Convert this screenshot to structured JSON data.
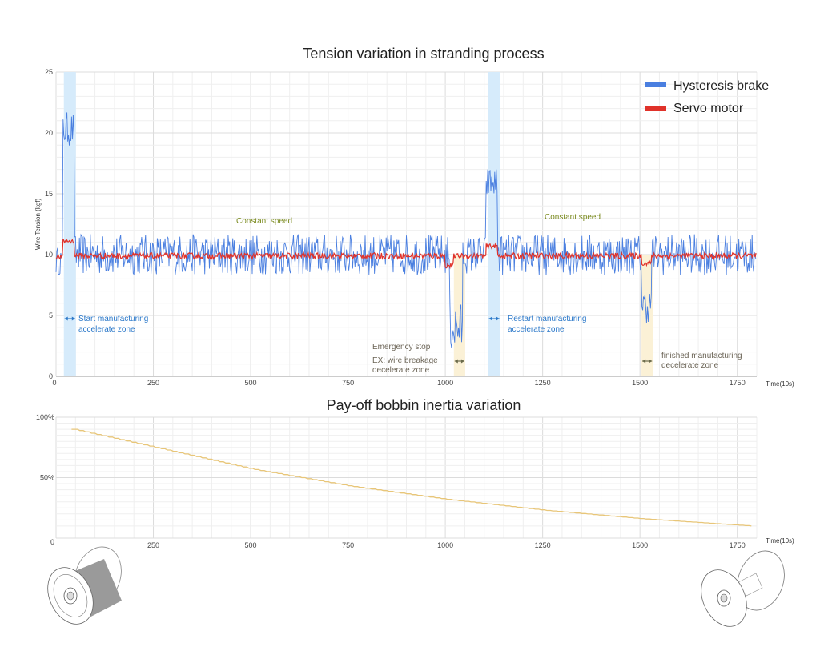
{
  "chart_data": [
    {
      "type": "line",
      "title": "Tension variation in stranding process",
      "xlabel": "Time(10s)",
      "ylabel": "Wire Tension (kgf)",
      "xlim": [
        0,
        1800
      ],
      "ylim": [
        0,
        25
      ],
      "x_ticks": [
        "0",
        "250",
        "500",
        "750",
        "1000",
        "1250",
        "1500",
        "1750"
      ],
      "x_tick_values": [
        0,
        250,
        500,
        750,
        1000,
        1250,
        1500,
        1750
      ],
      "y_ticks": [
        "0",
        "5",
        "10",
        "15",
        "20",
        "25"
      ],
      "y_tick_values": [
        0,
        5,
        10,
        15,
        20,
        25
      ],
      "grid": true,
      "legend_placement": "top-right",
      "series": [
        {
          "name": "Hysteresis brake",
          "color": "#4a7fe0",
          "segments": [
            {
              "from": 0,
              "to": 18,
              "mean": 9.5,
              "noise": 0.9
            },
            {
              "from": 18,
              "to": 48,
              "mean": 20.3,
              "noise": 1.1
            },
            {
              "from": 48,
              "to": 1012,
              "mean": 10.0,
              "noise": 1.3
            },
            {
              "from": 1012,
              "to": 1045,
              "mean": 4.0,
              "noise": 1.6
            },
            {
              "from": 1045,
              "to": 1105,
              "mean": 10.0,
              "noise": 1.2
            },
            {
              "from": 1105,
              "to": 1135,
              "mean": 15.9,
              "noise": 1.0
            },
            {
              "from": 1135,
              "to": 1505,
              "mean": 10.0,
              "noise": 1.3
            },
            {
              "from": 1505,
              "to": 1530,
              "mean": 5.8,
              "noise": 1.1
            },
            {
              "from": 1530,
              "to": 1800,
              "mean": 10.0,
              "noise": 1.3
            }
          ]
        },
        {
          "name": "Servo motor",
          "color": "#e0322a",
          "segments": [
            {
              "from": 0,
              "to": 18,
              "mean": 9.8,
              "noise": 0.2
            },
            {
              "from": 18,
              "to": 48,
              "mean": 11.1,
              "noise": 0.2
            },
            {
              "from": 48,
              "to": 1000,
              "mean": 9.9,
              "noise": 0.25
            },
            {
              "from": 1000,
              "to": 1022,
              "mean": 9.1,
              "noise": 0.2
            },
            {
              "from": 1022,
              "to": 1105,
              "mean": 9.9,
              "noise": 0.2
            },
            {
              "from": 1105,
              "to": 1135,
              "mean": 10.7,
              "noise": 0.2
            },
            {
              "from": 1135,
              "to": 1505,
              "mean": 9.9,
              "noise": 0.25
            },
            {
              "from": 1505,
              "to": 1530,
              "mean": 9.3,
              "noise": 0.2
            },
            {
              "from": 1530,
              "to": 1800,
              "mean": 9.9,
              "noise": 0.25
            }
          ]
        }
      ],
      "zones": [
        {
          "kind": "accelerate",
          "from": 20,
          "to": 51,
          "color": "#d6ebfb",
          "arrow_color": "#2b78c9"
        },
        {
          "kind": "decelerate",
          "from": 1022,
          "to": 1051,
          "color": "#fbf1d6",
          "arrow_color": "#6b6b4b"
        },
        {
          "kind": "accelerate",
          "from": 1110,
          "to": 1141,
          "color": "#d6ebfb",
          "arrow_color": "#2b78c9"
        },
        {
          "kind": "decelerate",
          "from": 1504,
          "to": 1533,
          "color": "#fbf1d6",
          "arrow_color": "#6b6b4b"
        }
      ],
      "annotations": {
        "constant_speed_1": "Constant speed",
        "constant_speed_2": "Constant speed",
        "start_line1": "Start manufacturing",
        "start_line2": "accelerate zone",
        "restart_line1": "Restart manufacturing",
        "restart_line2": "accelerate zone",
        "emergency_line1": "Emergency stop",
        "emergency_line2": "EX: wire breakage",
        "emergency_line3": "decelerate zone",
        "finished_line1": "finished manufacturing",
        "finished_line2": "decelerate zone"
      }
    },
    {
      "type": "line",
      "title": "Pay-off bobbin inertia variation",
      "xlabel": "Time(10s)",
      "xlim": [
        0,
        1800
      ],
      "ylim": [
        0,
        100
      ],
      "x_ticks": [
        "250",
        "500",
        "750",
        "1000",
        "1250",
        "1500",
        "1750"
      ],
      "x_tick_values": [
        250,
        500,
        750,
        1000,
        1250,
        1500,
        1750
      ],
      "y_ticks": [
        "0",
        "50%",
        "100%"
      ],
      "y_tick_values": [
        0,
        50,
        100
      ],
      "grid": true,
      "series": [
        {
          "color": "#e8c679",
          "x": [
            40,
            250,
            500,
            750,
            1000,
            1250,
            1500,
            1780
          ],
          "y": [
            90,
            75,
            57,
            43,
            32,
            23,
            16,
            10
          ]
        }
      ]
    }
  ],
  "colors": {
    "annotation_green": "#7a8a1e",
    "annotation_blue": "#2b78c9",
    "annotation_gray": "#6b6456"
  },
  "icons": {
    "left_bobbin": "full-bobbin-icon",
    "right_bobbin": "empty-bobbin-icon"
  }
}
